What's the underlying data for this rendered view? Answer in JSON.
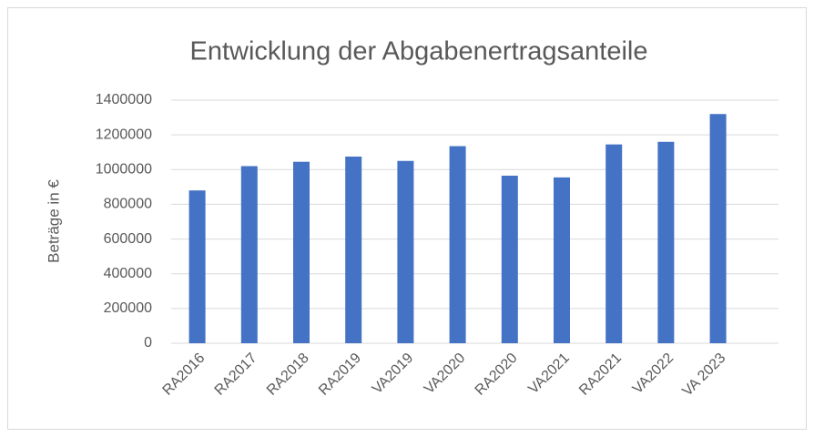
{
  "chart_data": {
    "type": "bar",
    "title": "Entwicklung der Abgabenertragsanteile",
    "y_label": "Beträge in €",
    "categories": [
      "RA2016",
      "RA2017",
      "RA2018",
      "RA2019",
      "VA2019",
      "VA2020",
      "RA2020",
      "VA2021",
      "RA2021",
      "VA2022",
      "VA 2023"
    ],
    "values": [
      880000,
      1020000,
      1045000,
      1075000,
      1050000,
      1135000,
      965000,
      955000,
      1145000,
      1160000,
      1320000
    ],
    "color": "#4472c4",
    "ylim": [
      0,
      1400000
    ],
    "yticks": [
      0,
      200000,
      400000,
      600000,
      800000,
      1000000,
      1200000,
      1400000
    ],
    "grid": true
  }
}
